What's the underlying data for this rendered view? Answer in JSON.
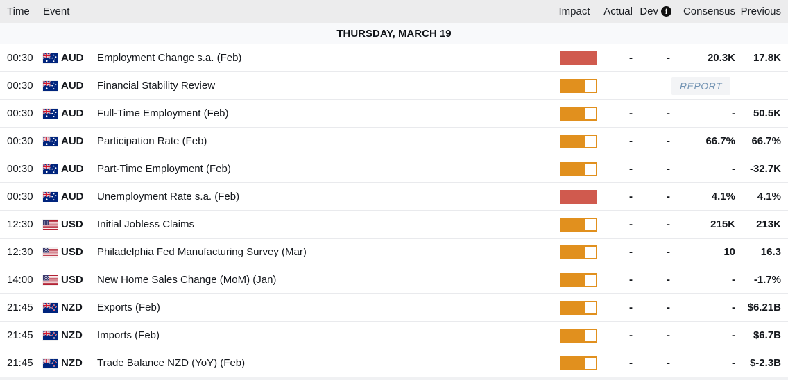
{
  "colors": {
    "impact_high": "#d05a4e",
    "impact_medium": "#e1901e",
    "report_text": "#7293b3",
    "header_bg": "#ececed",
    "date_header_bg": "#f8f9fb"
  },
  "header": {
    "time": "Time",
    "event": "Event",
    "impact": "Impact",
    "actual": "Actual",
    "dev": "Dev",
    "dev_info_icon": "info-icon",
    "consensus": "Consensus",
    "previous": "Previous"
  },
  "date_header": "THURSDAY, MARCH 19",
  "rows": [
    {
      "time": "00:30",
      "currency": "AUD",
      "flag_icon": "australia-flag-icon",
      "event": "Employment Change s.a. (Feb)",
      "impact": "high",
      "actual": "-",
      "dev": "-",
      "consensus": "20.3K",
      "previous": "17.8K"
    },
    {
      "time": "00:30",
      "currency": "AUD",
      "flag_icon": "australia-flag-icon",
      "event": "Financial Stability Review",
      "impact": "medium",
      "actual": "",
      "dev": "",
      "consensus": "",
      "previous": "",
      "report": "REPORT"
    },
    {
      "time": "00:30",
      "currency": "AUD",
      "flag_icon": "australia-flag-icon",
      "event": "Full-Time Employment (Feb)",
      "impact": "medium",
      "actual": "-",
      "dev": "-",
      "consensus": "-",
      "previous": "50.5K"
    },
    {
      "time": "00:30",
      "currency": "AUD",
      "flag_icon": "australia-flag-icon",
      "event": "Participation Rate (Feb)",
      "impact": "medium",
      "actual": "-",
      "dev": "-",
      "consensus": "66.7%",
      "previous": "66.7%"
    },
    {
      "time": "00:30",
      "currency": "AUD",
      "flag_icon": "australia-flag-icon",
      "event": "Part-Time Employment (Feb)",
      "impact": "medium",
      "actual": "-",
      "dev": "-",
      "consensus": "-",
      "previous": "-32.7K"
    },
    {
      "time": "00:30",
      "currency": "AUD",
      "flag_icon": "australia-flag-icon",
      "event": "Unemployment Rate s.a. (Feb)",
      "impact": "high",
      "actual": "-",
      "dev": "-",
      "consensus": "4.1%",
      "previous": "4.1%"
    },
    {
      "time": "12:30",
      "currency": "USD",
      "flag_icon": "united-states-flag-icon",
      "event": "Initial Jobless Claims",
      "impact": "medium",
      "actual": "-",
      "dev": "-",
      "consensus": "215K",
      "previous": "213K"
    },
    {
      "time": "12:30",
      "currency": "USD",
      "flag_icon": "united-states-flag-icon",
      "event": "Philadelphia Fed Manufacturing Survey (Mar)",
      "impact": "medium",
      "actual": "-",
      "dev": "-",
      "consensus": "10",
      "previous": "16.3"
    },
    {
      "time": "14:00",
      "currency": "USD",
      "flag_icon": "united-states-flag-icon",
      "event": "New Home Sales Change (MoM) (Jan)",
      "impact": "medium",
      "actual": "-",
      "dev": "-",
      "consensus": "-",
      "previous": "-1.7%"
    },
    {
      "time": "21:45",
      "currency": "NZD",
      "flag_icon": "new-zealand-flag-icon",
      "event": "Exports (Feb)",
      "impact": "medium",
      "actual": "-",
      "dev": "-",
      "consensus": "-",
      "previous": "$6.21B"
    },
    {
      "time": "21:45",
      "currency": "NZD",
      "flag_icon": "new-zealand-flag-icon",
      "event": "Imports (Feb)",
      "impact": "medium",
      "actual": "-",
      "dev": "-",
      "consensus": "-",
      "previous": "$6.7B"
    },
    {
      "time": "21:45",
      "currency": "NZD",
      "flag_icon": "new-zealand-flag-icon",
      "event": "Trade Balance NZD (YoY) (Feb)",
      "impact": "medium",
      "actual": "-",
      "dev": "-",
      "consensus": "-",
      "previous": "$-2.3B"
    }
  ]
}
